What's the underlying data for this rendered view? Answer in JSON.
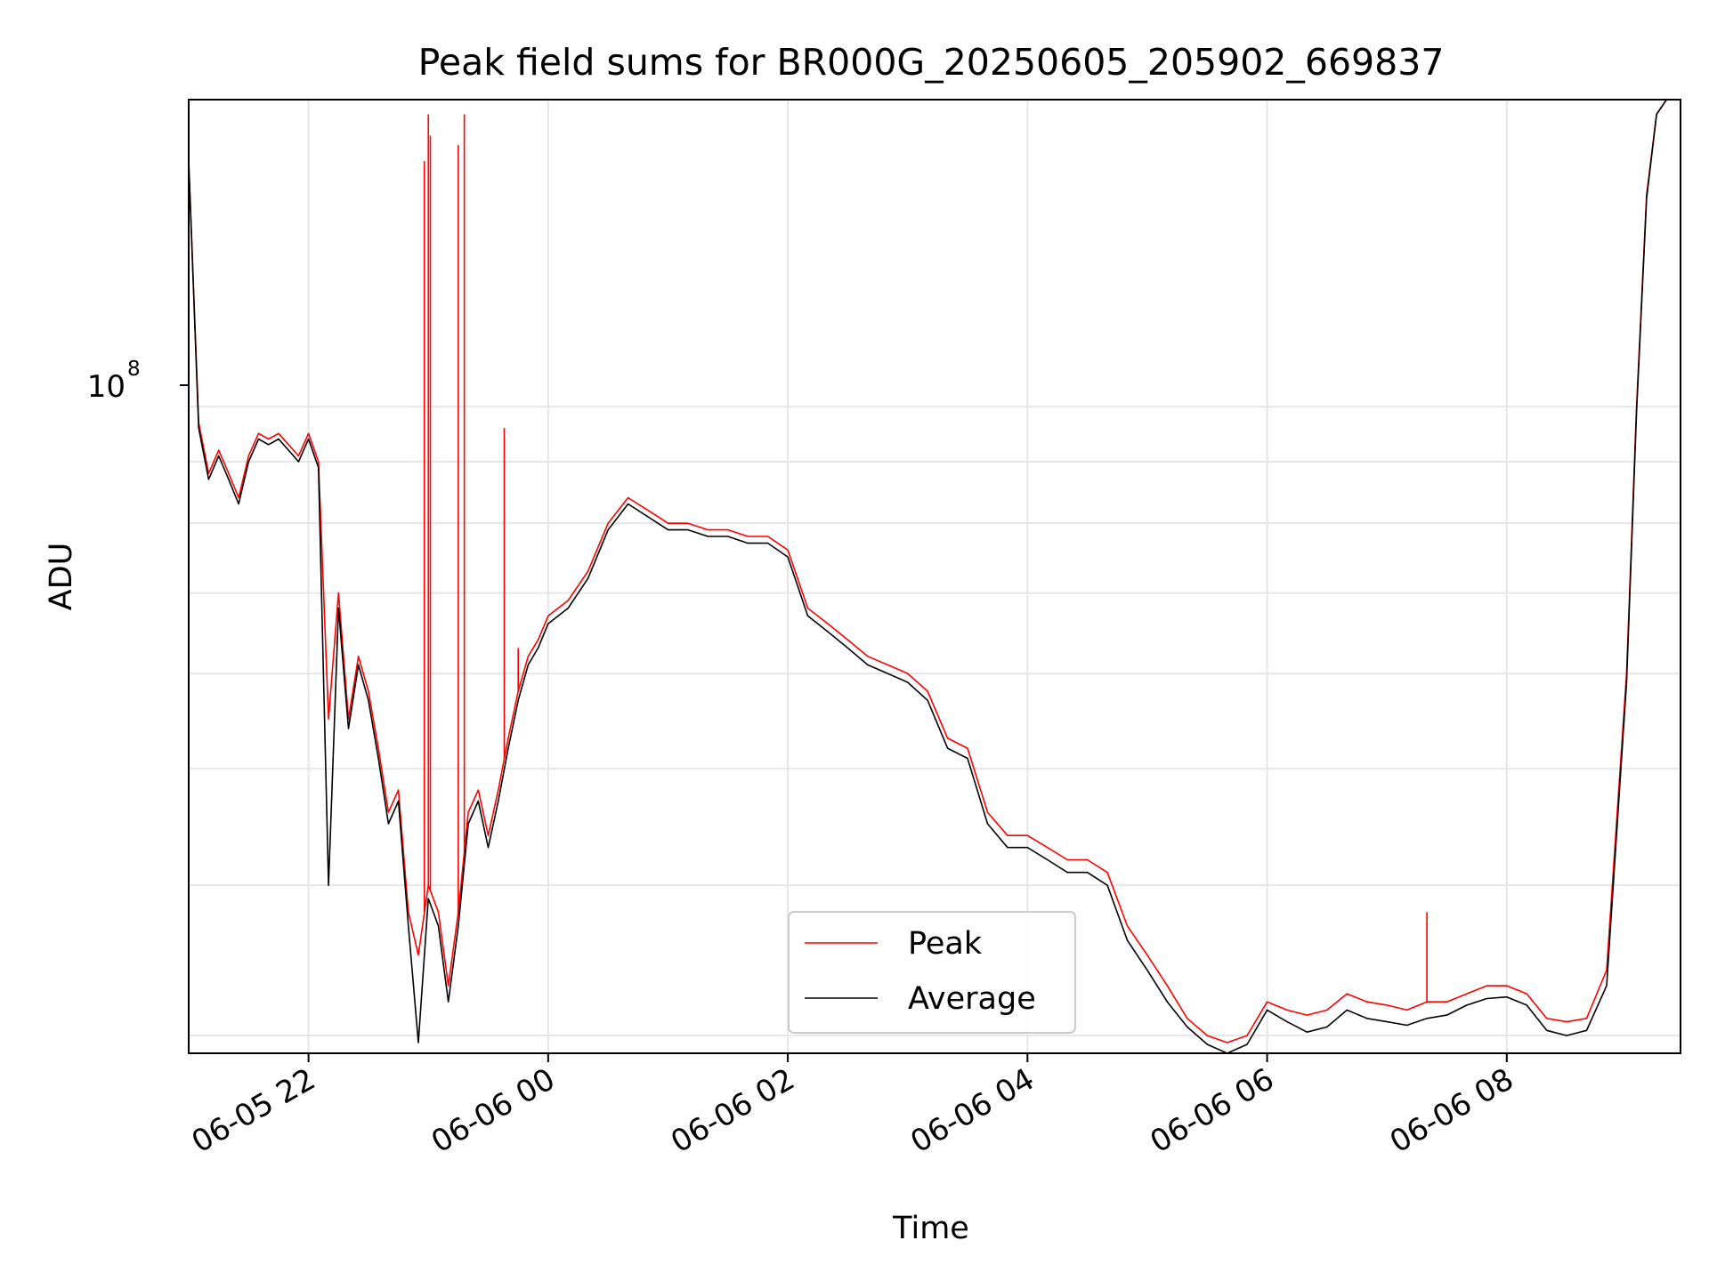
{
  "chart_data": {
    "type": "line",
    "title": "Peak field sums for BR000G_20250605_205902_669837",
    "xlabel": "Time",
    "ylabel": "ADU",
    "y_scale": "log",
    "y_tick_base": "10",
    "y_tick_exponent": "8",
    "x_tick_labels": [
      "06-05 22",
      "06-06 00",
      "06-06 02",
      "06-06 04",
      "06-06 06",
      "06-06 08"
    ],
    "x_tick_values": [
      "2025-06-05 22:00",
      "2025-06-06 00:00",
      "2025-06-06 02:00",
      "2025-06-06 04:00",
      "2025-06-06 06:00",
      "2025-06-06 08:00"
    ],
    "xlim": [
      "2025-06-05 21:00",
      "2025-06-06 09:27"
    ],
    "ylim": [
      29000000,
      180000000
    ],
    "grid": true,
    "legend_position": "lower center",
    "colors": {
      "Peak": "#ff0000",
      "Average": "#000000"
    },
    "x": [
      "2025-06-05 21:00",
      "2025-06-05 21:05",
      "2025-06-05 21:10",
      "2025-06-05 21:15",
      "2025-06-05 21:20",
      "2025-06-05 21:25",
      "2025-06-05 21:30",
      "2025-06-05 21:35",
      "2025-06-05 21:40",
      "2025-06-05 21:45",
      "2025-06-05 21:50",
      "2025-06-05 21:55",
      "2025-06-05 22:00",
      "2025-06-05 22:05",
      "2025-06-05 22:10",
      "2025-06-05 22:15",
      "2025-06-05 22:20",
      "2025-06-05 22:25",
      "2025-06-05 22:30",
      "2025-06-05 22:35",
      "2025-06-05 22:40",
      "2025-06-05 22:45",
      "2025-06-05 22:50",
      "2025-06-05 22:55",
      "2025-06-05 23:00",
      "2025-06-05 23:05",
      "2025-06-05 23:10",
      "2025-06-05 23:15",
      "2025-06-05 23:20",
      "2025-06-05 23:25",
      "2025-06-05 23:30",
      "2025-06-05 23:35",
      "2025-06-05 23:40",
      "2025-06-05 23:45",
      "2025-06-05 23:50",
      "2025-06-05 23:55",
      "2025-06-06 00:00",
      "2025-06-06 00:10",
      "2025-06-06 00:20",
      "2025-06-06 00:30",
      "2025-06-06 00:40",
      "2025-06-06 00:50",
      "2025-06-06 01:00",
      "2025-06-06 01:10",
      "2025-06-06 01:20",
      "2025-06-06 01:30",
      "2025-06-06 01:40",
      "2025-06-06 01:50",
      "2025-06-06 02:00",
      "2025-06-06 02:10",
      "2025-06-06 02:20",
      "2025-06-06 02:30",
      "2025-06-06 02:40",
      "2025-06-06 02:50",
      "2025-06-06 03:00",
      "2025-06-06 03:10",
      "2025-06-06 03:20",
      "2025-06-06 03:30",
      "2025-06-06 03:40",
      "2025-06-06 03:50",
      "2025-06-06 04:00",
      "2025-06-06 04:10",
      "2025-06-06 04:20",
      "2025-06-06 04:30",
      "2025-06-06 04:40",
      "2025-06-06 04:50",
      "2025-06-06 05:00",
      "2025-06-06 05:10",
      "2025-06-06 05:20",
      "2025-06-06 05:30",
      "2025-06-06 05:40",
      "2025-06-06 05:50",
      "2025-06-06 06:00",
      "2025-06-06 06:10",
      "2025-06-06 06:20",
      "2025-06-06 06:30",
      "2025-06-06 06:40",
      "2025-06-06 06:50",
      "2025-06-06 07:00",
      "2025-06-06 07:10",
      "2025-06-06 07:20",
      "2025-06-06 07:30",
      "2025-06-06 07:40",
      "2025-06-06 07:50",
      "2025-06-06 08:00",
      "2025-06-06 08:10",
      "2025-06-06 08:20",
      "2025-06-06 08:30",
      "2025-06-06 08:40",
      "2025-06-06 08:50",
      "2025-06-06 09:00",
      "2025-06-06 09:05",
      "2025-06-06 09:10",
      "2025-06-06 09:15",
      "2025-06-06 09:20",
      "2025-06-06 09:25"
    ],
    "series": [
      {
        "name": "Peak",
        "values": [
          160000000,
          97000000,
          88000000,
          92000000,
          88000000,
          84000000,
          91000000,
          95000000,
          94000000,
          95000000,
          93000000,
          91000000,
          95000000,
          90000000,
          55000000,
          70000000,
          55000000,
          62000000,
          58000000,
          52000000,
          46000000,
          48000000,
          38000000,
          35000000,
          40000000,
          38000000,
          33000000,
          38000000,
          46000000,
          48000000,
          44000000,
          48000000,
          53000000,
          58000000,
          62000000,
          64000000,
          67000000,
          69000000,
          73000000,
          80000000,
          84000000,
          82000000,
          80000000,
          80000000,
          79000000,
          79000000,
          78000000,
          78000000,
          76000000,
          68000000,
          66000000,
          64000000,
          62000000,
          61000000,
          60000000,
          58000000,
          53000000,
          52000000,
          46000000,
          44000000,
          44000000,
          43000000,
          42000000,
          42000000,
          41000000,
          37000000,
          35000000,
          33000000,
          31000000,
          30000000,
          29600000,
          30000000,
          32000000,
          31500000,
          31200000,
          31500000,
          32500000,
          32000000,
          31800000,
          31500000,
          32000000,
          32000000,
          32500000,
          33000000,
          33000000,
          32500000,
          31000000,
          30800000,
          31000000,
          34000000,
          60000000,
          100000000,
          150000000,
          175000000,
          180000000,
          180000000
        ],
        "spikes": [
          {
            "x": "2025-06-05 22:58",
            "value": 160000000
          },
          {
            "x": "2025-06-05 23:00",
            "value": 175000000
          },
          {
            "x": "2025-06-05 23:01",
            "value": 168000000
          },
          {
            "x": "2025-06-05 23:15",
            "value": 165000000
          },
          {
            "x": "2025-06-05 23:18",
            "value": 175000000
          },
          {
            "x": "2025-06-05 23:38",
            "value": 96000000
          },
          {
            "x": "2025-06-05 23:45",
            "value": 63000000
          },
          {
            "x": "2025-06-06 07:20",
            "value": 38000000
          }
        ]
      },
      {
        "name": "Average",
        "values": [
          160000000,
          96000000,
          87000000,
          91000000,
          87000000,
          83000000,
          90000000,
          94000000,
          93000000,
          94000000,
          92000000,
          90000000,
          94000000,
          89000000,
          40000000,
          68000000,
          54000000,
          61000000,
          57000000,
          51000000,
          45000000,
          47000000,
          37000000,
          29600000,
          39000000,
          37000000,
          32000000,
          37000000,
          45000000,
          47000000,
          43000000,
          47000000,
          52000000,
          57000000,
          61000000,
          63000000,
          66000000,
          68000000,
          72000000,
          79000000,
          83000000,
          81000000,
          79000000,
          79000000,
          78000000,
          78000000,
          77000000,
          77000000,
          75000000,
          67000000,
          65000000,
          63000000,
          61000000,
          60000000,
          59000000,
          57000000,
          52000000,
          51000000,
          45000000,
          43000000,
          43000000,
          42000000,
          41000000,
          41000000,
          40000000,
          36000000,
          34000000,
          32000000,
          30500000,
          29500000,
          29000000,
          29500000,
          31500000,
          30800000,
          30200000,
          30500000,
          31500000,
          31000000,
          30800000,
          30600000,
          31000000,
          31200000,
          31800000,
          32200000,
          32300000,
          31800000,
          30300000,
          30000000,
          30300000,
          33000000,
          59000000,
          99000000,
          149000000,
          175000000,
          180000000,
          180000000
        ]
      }
    ]
  }
}
